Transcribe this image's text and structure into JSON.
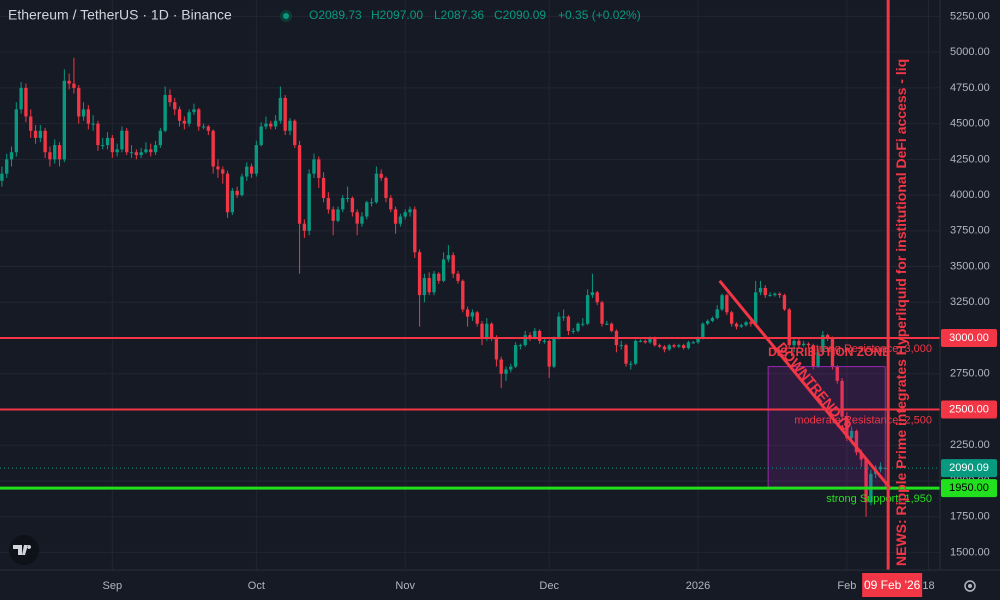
{
  "header": {
    "symbol": "Ethereum / TetherUS · 1D · Binance",
    "open": "O2089.73",
    "high": "H2097.00",
    "low": "L2087.36",
    "close": "C2090.09",
    "change": "+0.35 (+0.02%)"
  },
  "chart_data": {
    "type": "candlestick",
    "xlim": [
      -0.4,
      195.4
    ],
    "xticks": [
      {
        "value": 23,
        "label": "Sep"
      },
      {
        "value": 53,
        "label": "Oct"
      },
      {
        "value": 84,
        "label": "Nov"
      },
      {
        "value": 114,
        "label": "Dec"
      },
      {
        "value": 145,
        "label": "2026"
      },
      {
        "value": 176,
        "label": "Feb"
      },
      {
        "value": 193,
        "label": "18"
      }
    ],
    "ylim": [
      1377,
      5365
    ],
    "yticks": [
      {
        "value": 1500,
        "label": "1500.00"
      },
      {
        "value": 1750,
        "label": "1750.00"
      },
      {
        "value": 2000,
        "label": "2000.00"
      },
      {
        "value": 2250,
        "label": "2250.00"
      },
      {
        "value": 2500,
        "label": "2500.00"
      },
      {
        "value": 2750,
        "label": "2750.00"
      },
      {
        "value": 3000,
        "label": "3000.00"
      },
      {
        "value": 3250,
        "label": "3250.00"
      },
      {
        "value": 3500,
        "label": "3500.00"
      },
      {
        "value": 3750,
        "label": "3750.00"
      },
      {
        "value": 4000,
        "label": "4000.00"
      },
      {
        "value": 4250,
        "label": "4250.00"
      },
      {
        "value": 4500,
        "label": "4500.00"
      },
      {
        "value": 4750,
        "label": "4750.00"
      },
      {
        "value": 5000,
        "label": "5000.00"
      },
      {
        "value": 5250,
        "label": "5250.00"
      }
    ],
    "grid": true,
    "up_color": "#089981",
    "down_color": "#f23645",
    "candles": [
      [
        4100,
        4200,
        4060,
        4150
      ],
      [
        4150,
        4290,
        4120,
        4250
      ],
      [
        4250,
        4340,
        4200,
        4300
      ],
      [
        4300,
        4650,
        4270,
        4600
      ],
      [
        4600,
        4790,
        4570,
        4750
      ],
      [
        4750,
        4780,
        4510,
        4550
      ],
      [
        4550,
        4600,
        4400,
        4450
      ],
      [
        4450,
        4490,
        4360,
        4400
      ],
      [
        4400,
        4490,
        4370,
        4450
      ],
      [
        4450,
        4470,
        4260,
        4300
      ],
      [
        4300,
        4340,
        4200,
        4250
      ],
      [
        4250,
        4390,
        4220,
        4350
      ],
      [
        4350,
        4370,
        4200,
        4250
      ],
      [
        4250,
        4880,
        4230,
        4800
      ],
      [
        4800,
        4850,
        4740,
        4780
      ],
      [
        4780,
        4960,
        4710,
        4750
      ],
      [
        4750,
        4770,
        4500,
        4550
      ],
      [
        4550,
        4650,
        4520,
        4600
      ],
      [
        4600,
        4630,
        4460,
        4500
      ],
      [
        4500,
        4560,
        4450,
        4500
      ],
      [
        4500,
        4520,
        4310,
        4350
      ],
      [
        4350,
        4400,
        4320,
        4350
      ],
      [
        4350,
        4440,
        4320,
        4400
      ],
      [
        4400,
        4420,
        4260,
        4300
      ],
      [
        4300,
        4360,
        4270,
        4320
      ],
      [
        4320,
        4480,
        4300,
        4450
      ],
      [
        4450,
        4470,
        4280,
        4300
      ],
      [
        4300,
        4350,
        4260,
        4300
      ],
      [
        4300,
        4320,
        4250,
        4280
      ],
      [
        4280,
        4330,
        4260,
        4300
      ],
      [
        4300,
        4370,
        4290,
        4320
      ],
      [
        4320,
        4360,
        4270,
        4300
      ],
      [
        4300,
        4380,
        4280,
        4350
      ],
      [
        4350,
        4470,
        4330,
        4450
      ],
      [
        4450,
        4760,
        4440,
        4700
      ],
      [
        4700,
        4740,
        4620,
        4650
      ],
      [
        4650,
        4680,
        4560,
        4600
      ],
      [
        4600,
        4620,
        4480,
        4520
      ],
      [
        4520,
        4550,
        4460,
        4500
      ],
      [
        4500,
        4600,
        4480,
        4580
      ],
      [
        4580,
        4640,
        4560,
        4600
      ],
      [
        4600,
        4610,
        4450,
        4480
      ],
      [
        4480,
        4500,
        4460,
        4480
      ],
      [
        4480,
        4490,
        4420,
        4450
      ],
      [
        4450,
        4460,
        4150,
        4200
      ],
      [
        4200,
        4250,
        4120,
        4180
      ],
      [
        4180,
        4200,
        4080,
        4150
      ],
      [
        4150,
        4170,
        3840,
        3880
      ],
      [
        3880,
        4050,
        3860,
        4030
      ],
      [
        4030,
        4060,
        3980,
        4000
      ],
      [
        4000,
        4150,
        3990,
        4130
      ],
      [
        4130,
        4230,
        4100,
        4200
      ],
      [
        4200,
        4220,
        4120,
        4150
      ],
      [
        4150,
        4380,
        4130,
        4350
      ],
      [
        4350,
        4510,
        4340,
        4480
      ],
      [
        4480,
        4550,
        4460,
        4500
      ],
      [
        4500,
        4520,
        4460,
        4480
      ],
      [
        4480,
        4560,
        4460,
        4520
      ],
      [
        4520,
        4760,
        4500,
        4680
      ],
      [
        4680,
        4700,
        4420,
        4450
      ],
      [
        4450,
        4540,
        4420,
        4520
      ],
      [
        4520,
        4530,
        4330,
        4350
      ],
      [
        4350,
        4380,
        3450,
        3800
      ],
      [
        3800,
        3830,
        3700,
        3750
      ],
      [
        3750,
        4180,
        3720,
        4150
      ],
      [
        4150,
        4290,
        4120,
        4250
      ],
      [
        4250,
        4270,
        4050,
        4120
      ],
      [
        4120,
        4160,
        3950,
        3980
      ],
      [
        3980,
        4020,
        3870,
        3900
      ],
      [
        3900,
        3920,
        3720,
        3820
      ],
      [
        3820,
        3920,
        3810,
        3900
      ],
      [
        3900,
        4000,
        3880,
        3980
      ],
      [
        3980,
        4060,
        3950,
        3980
      ],
      [
        3980,
        3990,
        3850,
        3880
      ],
      [
        3880,
        3900,
        3720,
        3800
      ],
      [
        3800,
        3880,
        3780,
        3850
      ],
      [
        3850,
        3960,
        3830,
        3950
      ],
      [
        3950,
        3980,
        3920,
        3950
      ],
      [
        3950,
        4200,
        3940,
        4150
      ],
      [
        4150,
        4180,
        4100,
        4120
      ],
      [
        4120,
        4130,
        3950,
        3980
      ],
      [
        3980,
        4000,
        3880,
        3900
      ],
      [
        3900,
        3920,
        3730,
        3800
      ],
      [
        3800,
        3870,
        3780,
        3850
      ],
      [
        3850,
        3900,
        3830,
        3880
      ],
      [
        3880,
        3920,
        3850,
        3900
      ],
      [
        3900,
        3920,
        3560,
        3600
      ],
      [
        3600,
        3620,
        3080,
        3300
      ],
      [
        3300,
        3450,
        3250,
        3420
      ],
      [
        3420,
        3460,
        3300,
        3320
      ],
      [
        3320,
        3470,
        3300,
        3450
      ],
      [
        3450,
        3460,
        3380,
        3400
      ],
      [
        3400,
        3600,
        3390,
        3550
      ],
      [
        3550,
        3650,
        3530,
        3580
      ],
      [
        3580,
        3600,
        3420,
        3450
      ],
      [
        3450,
        3470,
        3380,
        3400
      ],
      [
        3400,
        3410,
        3180,
        3200
      ],
      [
        3200,
        3220,
        3080,
        3150
      ],
      [
        3150,
        3200,
        3120,
        3180
      ],
      [
        3180,
        3190,
        3080,
        3100
      ],
      [
        3100,
        3120,
        2950,
        3000
      ],
      [
        3000,
        3140,
        2980,
        3100
      ],
      [
        3100,
        3110,
        2980,
        3000
      ],
      [
        3000,
        3020,
        2800,
        2850
      ],
      [
        2850,
        2870,
        2650,
        2750
      ],
      [
        2750,
        2800,
        2700,
        2780
      ],
      [
        2780,
        2820,
        2760,
        2800
      ],
      [
        2800,
        2970,
        2790,
        2950
      ],
      [
        2950,
        2960,
        2920,
        2950
      ],
      [
        2950,
        3050,
        2940,
        3020
      ],
      [
        3020,
        3040,
        2980,
        3000
      ],
      [
        3000,
        3070,
        2990,
        3050
      ],
      [
        3050,
        3060,
        2960,
        2980
      ],
      [
        2980,
        3000,
        2960,
        2980
      ],
      [
        2980,
        2990,
        2720,
        2800
      ],
      [
        2800,
        3010,
        2790,
        3000
      ],
      [
        3000,
        3180,
        2990,
        3150
      ],
      [
        3150,
        3200,
        3120,
        3150
      ],
      [
        3150,
        3160,
        3020,
        3050
      ],
      [
        3050,
        3070,
        3030,
        3050
      ],
      [
        3050,
        3110,
        3040,
        3100
      ],
      [
        3100,
        3140,
        3080,
        3100
      ],
      [
        3100,
        3340,
        3090,
        3300
      ],
      [
        3300,
        3450,
        3280,
        3320
      ],
      [
        3320,
        3330,
        3230,
        3250
      ],
      [
        3250,
        3260,
        3080,
        3100
      ],
      [
        3100,
        3120,
        3090,
        3100
      ],
      [
        3100,
        3110,
        3040,
        3050
      ],
      [
        3050,
        3060,
        2900,
        2950
      ],
      [
        2950,
        2980,
        2920,
        2950
      ],
      [
        2950,
        2960,
        2800,
        2820
      ],
      [
        2820,
        2840,
        2780,
        2820
      ],
      [
        2820,
        2990,
        2810,
        2980
      ],
      [
        2980,
        2990,
        2970,
        2980
      ],
      [
        2980,
        2990,
        2960,
        2970
      ],
      [
        2970,
        3010,
        2960,
        3000
      ],
      [
        3000,
        3010,
        2940,
        2950
      ],
      [
        2950,
        2960,
        2930,
        2940
      ],
      [
        2940,
        2950,
        2900,
        2920
      ],
      [
        2920,
        2960,
        2910,
        2950
      ],
      [
        2950,
        2960,
        2930,
        2940
      ],
      [
        2940,
        2960,
        2930,
        2950
      ],
      [
        2950,
        2960,
        2920,
        2930
      ],
      [
        2930,
        2980,
        2920,
        2970
      ],
      [
        2970,
        2980,
        2960,
        2970
      ],
      [
        2970,
        3010,
        2960,
        3000
      ],
      [
        3000,
        3110,
        2990,
        3100
      ],
      [
        3100,
        3130,
        3090,
        3120
      ],
      [
        3120,
        3150,
        3110,
        3140
      ],
      [
        3140,
        3230,
        3130,
        3200
      ],
      [
        3200,
        3310,
        3190,
        3300
      ],
      [
        3300,
        3310,
        3160,
        3180
      ],
      [
        3180,
        3190,
        3080,
        3100
      ],
      [
        3100,
        3110,
        3060,
        3080
      ],
      [
        3080,
        3100,
        3070,
        3090
      ],
      [
        3090,
        3120,
        3080,
        3110
      ],
      [
        3110,
        3120,
        3080,
        3100
      ],
      [
        3100,
        3400,
        3090,
        3320
      ],
      [
        3320,
        3400,
        3300,
        3350
      ],
      [
        3350,
        3370,
        3280,
        3300
      ],
      [
        3300,
        3320,
        3290,
        3300
      ],
      [
        3300,
        3320,
        3290,
        3310
      ],
      [
        3310,
        3320,
        3280,
        3300
      ],
      [
        3300,
        3310,
        3190,
        3200
      ],
      [
        3200,
        3210,
        2930,
        2950
      ],
      [
        2950,
        3000,
        2900,
        2980
      ],
      [
        2980,
        3000,
        2930,
        2950
      ],
      [
        2950,
        2980,
        2940,
        2960
      ],
      [
        2960,
        2970,
        2930,
        2950
      ],
      [
        2950,
        2960,
        2780,
        2800
      ],
      [
        2800,
        2920,
        2790,
        2900
      ],
      [
        2900,
        3050,
        2890,
        3020
      ],
      [
        3020,
        3030,
        2980,
        3000
      ],
      [
        3000,
        3010,
        2780,
        2800
      ],
      [
        2800,
        2810,
        2680,
        2700
      ],
      [
        2700,
        2720,
        2420,
        2450
      ],
      [
        2450,
        2480,
        2280,
        2300
      ],
      [
        2300,
        2380,
        2260,
        2350
      ],
      [
        2350,
        2360,
        2180,
        2200
      ],
      [
        2200,
        2220,
        2100,
        2150
      ],
      [
        2150,
        2160,
        1750,
        1850
      ],
      [
        1850,
        2080,
        1830,
        2050
      ],
      [
        2050,
        2110,
        2020,
        2080
      ],
      [
        2080,
        2130,
        2060,
        2100
      ],
      [
        2089.73,
        2097.0,
        2087.36,
        2090.09
      ]
    ],
    "levels": [
      {
        "value": 3000,
        "label": "3000.00",
        "text": "strong Resistance: 3,000",
        "color": "#f23645"
      },
      {
        "value": 2500,
        "label": "2500.00",
        "text": "moderate Resistance: 2,500",
        "color": "#f23645"
      },
      {
        "value": 1950,
        "label": "1950.00",
        "text": "strong Support: 1,950",
        "color": "#22e01e"
      }
    ],
    "last_price": {
      "value": 2090.09,
      "label": "2090.09"
    },
    "zone": {
      "text": "DISTRIBUTION ZONE",
      "x": [
        159.6,
        184
      ],
      "y": [
        1950,
        2800
      ]
    },
    "trendline": {
      "text": "DOWNTREND (9",
      "start": [
        149.5,
        3400
      ],
      "end": [
        185,
        1950
      ]
    },
    "news": {
      "x": 184.6,
      "text": "NEWS: Ripple Prime integrates Hyperliquid for institutional DeFi access - liq",
      "date": "09 Feb '26"
    }
  }
}
